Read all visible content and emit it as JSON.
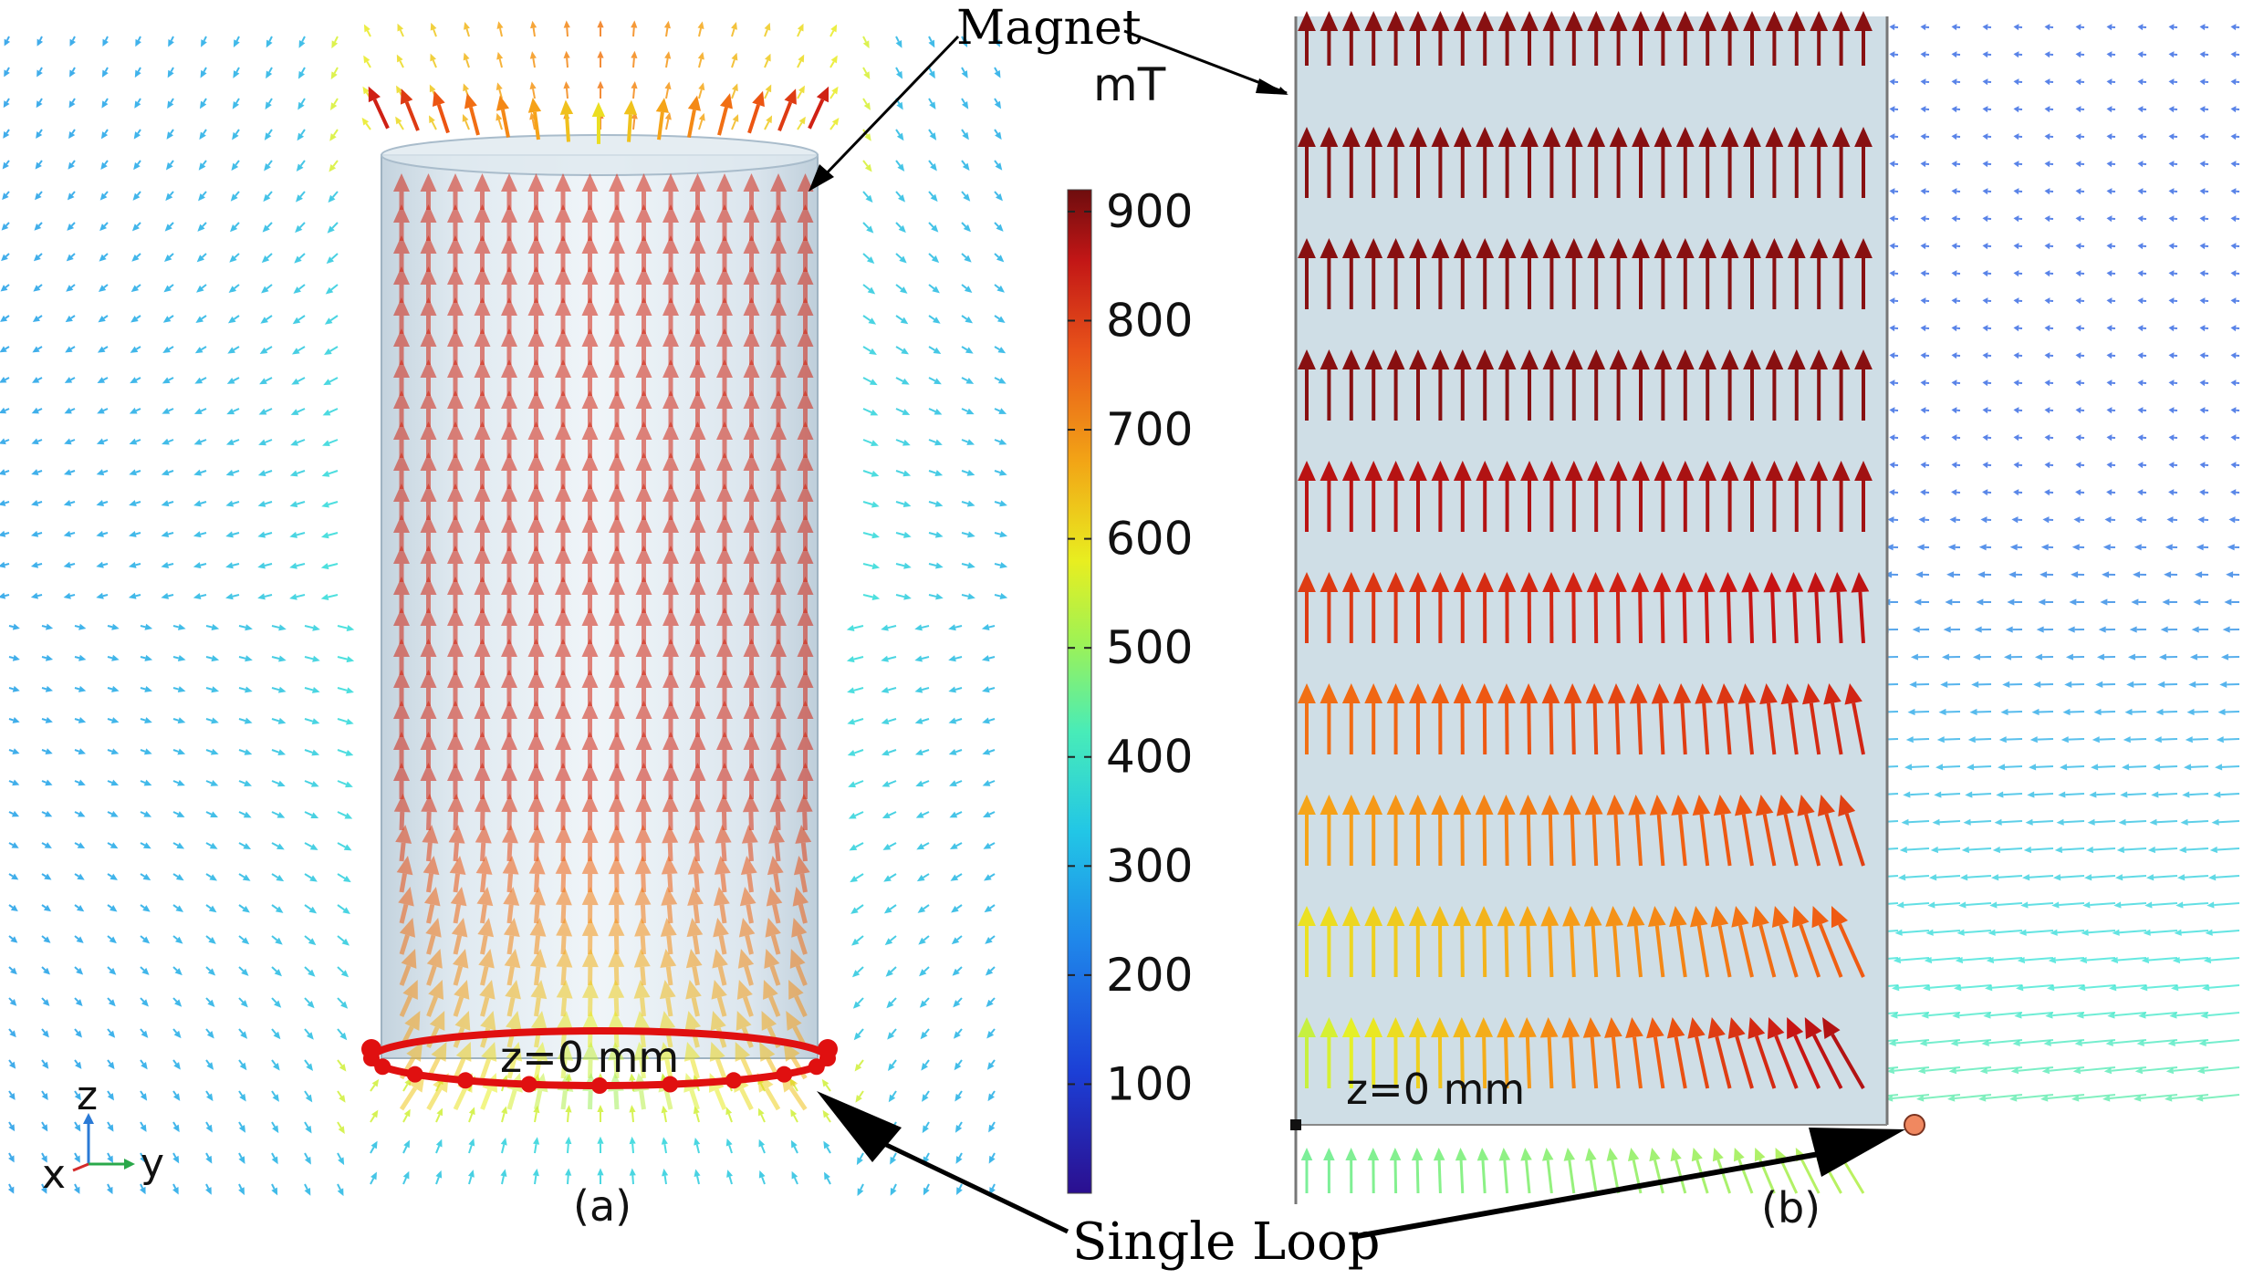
{
  "figure": {
    "panel_a_label": "(a)",
    "panel_b_label": "(b)",
    "magnet_label": "Magnet",
    "loop_label": "Single Loop",
    "z_label_a": "z=0 mm",
    "z_label_b": "z=0 mm",
    "axes": {
      "z": "z",
      "x": "x",
      "y": "y"
    }
  },
  "colorbar": {
    "unit": "mT",
    "ticks": [
      "900",
      "800",
      "700",
      "600",
      "500",
      "400",
      "300",
      "200",
      "100"
    ],
    "range_mT": [
      0,
      920
    ]
  },
  "colors": {
    "magnet_fill": "#c9d8e2",
    "loop": "#e01010",
    "colormap": [
      "#3a0fa8",
      "#2456e0",
      "#1fa7e8",
      "#33e6d6",
      "#7ff07a",
      "#e8f024",
      "#f6a018",
      "#ef5a12",
      "#c81414",
      "#7a0f10"
    ]
  }
}
